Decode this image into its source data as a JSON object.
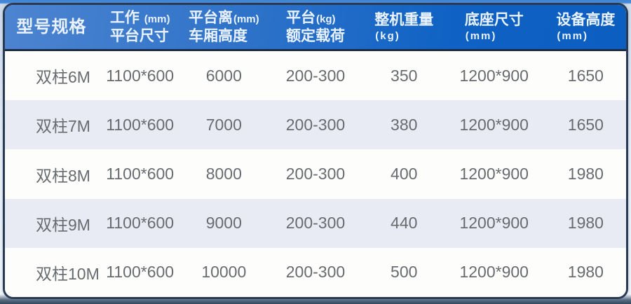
{
  "chart_data": {
    "type": "table",
    "columns": [
      "型号规格",
      "工作(mm) 平台尺寸",
      "平台离(mm) 车厢高度",
      "平台(kg) 额定载荷",
      "整机重量(kg)",
      "底座尺寸(mm)",
      "设备高度(mm)"
    ],
    "rows": [
      [
        "双柱6M",
        "1100*600",
        "6000",
        "200-300",
        "350",
        "1200*900",
        "1650"
      ],
      [
        "双柱7M",
        "1100*600",
        "7000",
        "200-300",
        "380",
        "1200*900",
        "1650"
      ],
      [
        "双柱8M",
        "1100*600",
        "8000",
        "200-300",
        "400",
        "1200*900",
        "1980"
      ],
      [
        "双柱9M",
        "1100*600",
        "9000",
        "200-300",
        "440",
        "1200*900",
        "1980"
      ],
      [
        "双柱10M",
        "1100*600",
        "10000",
        "200-300",
        "500",
        "1200*900",
        "1980"
      ]
    ]
  },
  "header": {
    "cells": [
      {
        "l1": "型号规格"
      },
      {
        "l1": "工作 ",
        "l1u": "(mm)",
        "l2": "平台尺寸"
      },
      {
        "l1": "平台离",
        "l1u": "(mm)",
        "l2": "车厢高度"
      },
      {
        "l1": "平台",
        "l1u": "(kg)",
        "l2": "额定载荷"
      },
      {
        "l1": "整机重量",
        "l2u": "(kg)"
      },
      {
        "l1": "底座尺寸",
        "l2u": "(mm)"
      },
      {
        "l1": "设备高度",
        "l2u": "(mm)"
      }
    ]
  },
  "colors": {
    "header_gradient_left": "#4d84d0",
    "header_gradient_right": "#0c5ec0",
    "header_text": "#e9f2fe",
    "card_border": "#2a3a52",
    "row_background": "#fdfdfb",
    "row_alt_background": "#e9ebf4",
    "data_text": "#686b70"
  }
}
